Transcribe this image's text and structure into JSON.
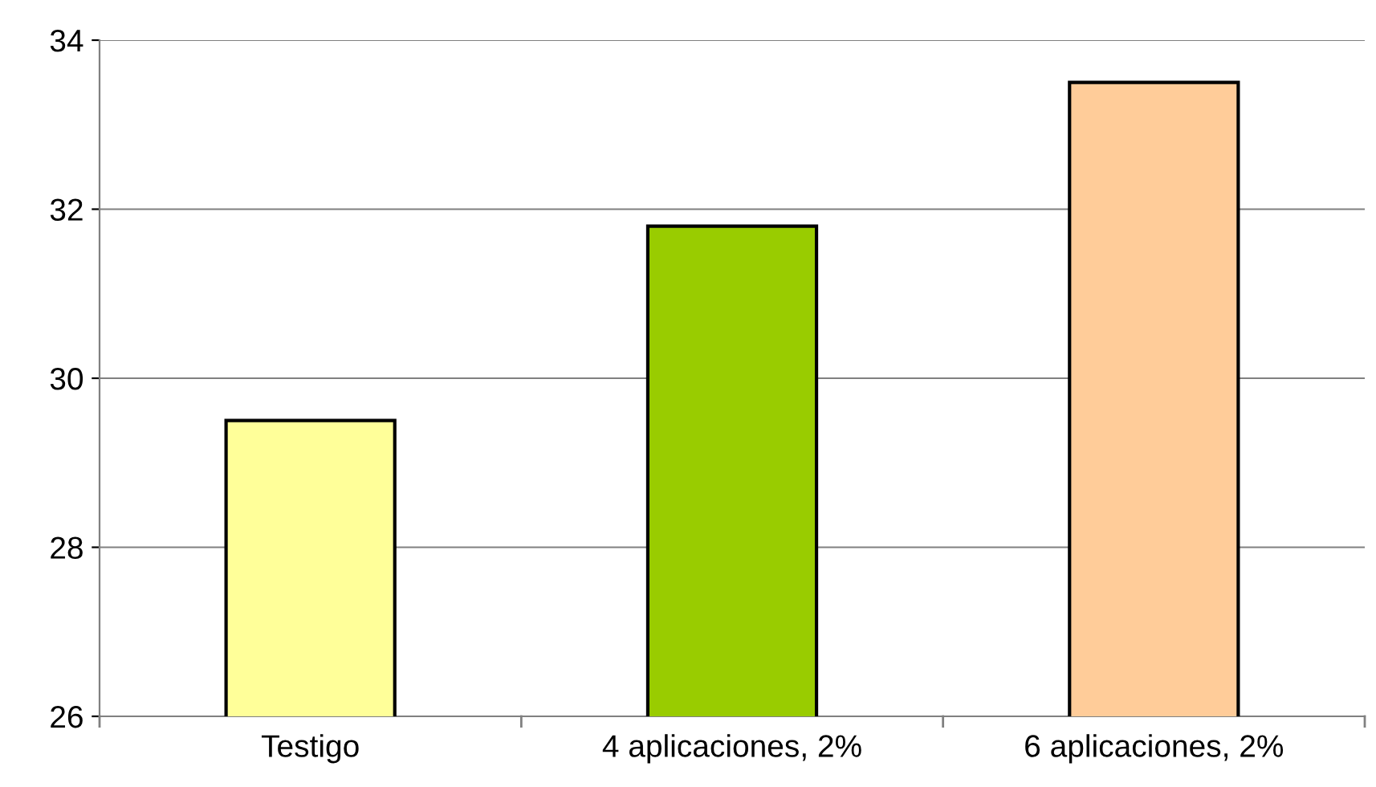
{
  "chart_data": {
    "type": "bar",
    "categories": [
      "Testigo",
      "4 aplicaciones, 2%",
      "6 aplicaciones, 2%"
    ],
    "values": [
      29.5,
      31.8,
      33.5
    ],
    "colors": [
      "#ffff99",
      "#99cc00",
      "#ffcc99"
    ],
    "ylim": [
      26,
      34
    ],
    "yticks": [
      26,
      28,
      30,
      32,
      34
    ],
    "grid": "y",
    "legend": false
  }
}
